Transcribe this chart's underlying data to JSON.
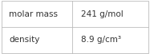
{
  "rows": [
    {
      "label": "molar mass",
      "value": "241 g/mol"
    },
    {
      "label": "density",
      "value": "8.9 g/cm³"
    }
  ],
  "background_color": "#ffffff",
  "border_color": "#bbbbbb",
  "text_color": "#333333",
  "font_size": 7.5,
  "col_split": 0.48
}
